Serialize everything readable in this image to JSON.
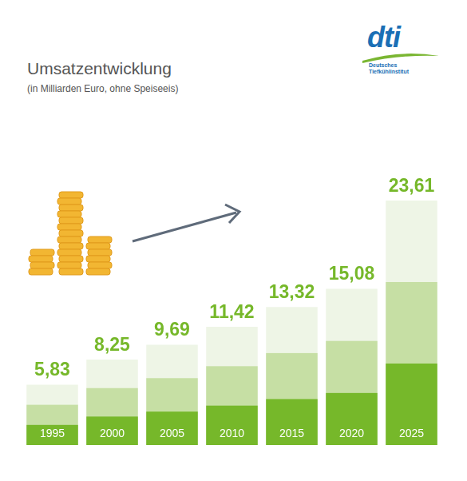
{
  "chart_data": {
    "type": "bar",
    "title": "Umsatzentwicklung",
    "subtitle": "(in Milliarden Euro, ohne Speiseeis)",
    "categories": [
      "1995",
      "2000",
      "2005",
      "2010",
      "2015",
      "2020",
      "2025"
    ],
    "values": [
      5.83,
      8.25,
      9.69,
      11.42,
      13.32,
      15.08,
      23.61
    ],
    "value_labels": [
      "5,83",
      "8,25",
      "9,69",
      "11,42",
      "13,32",
      "15,08",
      "23,61"
    ],
    "color": "#76b82a",
    "ylim": [
      0,
      26
    ],
    "data_labels": true,
    "tick_labels": false,
    "grid": false
  },
  "logo": {
    "text": "dti",
    "caption": [
      "Deutsches",
      "Tiefkühlinstitut"
    ]
  }
}
